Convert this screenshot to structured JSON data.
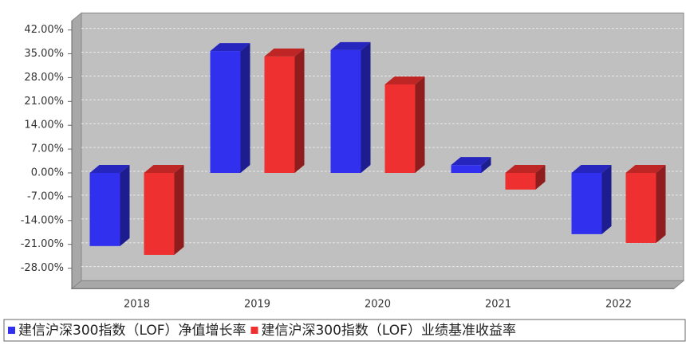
{
  "chart_data": {
    "type": "bar3d",
    "categories": [
      "2018",
      "2019",
      "2020",
      "2021",
      "2022"
    ],
    "series": [
      {
        "name": "建信沪深300指数（LOF）净值增长率",
        "color": "#3030ee",
        "values": [
          -21.5,
          35.8,
          36.1,
          2.3,
          -18.0
        ]
      },
      {
        "name": "建信沪深300指数（LOF）业绩基准收益率",
        "color": "#ee3030",
        "values": [
          -24.1,
          34.2,
          26.0,
          -4.9,
          -20.6
        ]
      }
    ],
    "ylim": [
      -34,
      47
    ],
    "yticks": [
      {
        "value": 42,
        "label": "42.00%"
      },
      {
        "value": 35,
        "label": "35.00%"
      },
      {
        "value": 28,
        "label": "28.00%"
      },
      {
        "value": 21,
        "label": "21.00%"
      },
      {
        "value": 14,
        "label": "14.00%"
      },
      {
        "value": 7,
        "label": "7.00%"
      },
      {
        "value": 0,
        "label": "0.00%"
      },
      {
        "value": -7,
        "label": "-7.00%"
      },
      {
        "value": -14,
        "label": "-14.00%"
      },
      {
        "value": -21,
        "label": "-21.00%"
      },
      {
        "value": -28,
        "label": "-28.00%"
      }
    ],
    "grid": true
  }
}
